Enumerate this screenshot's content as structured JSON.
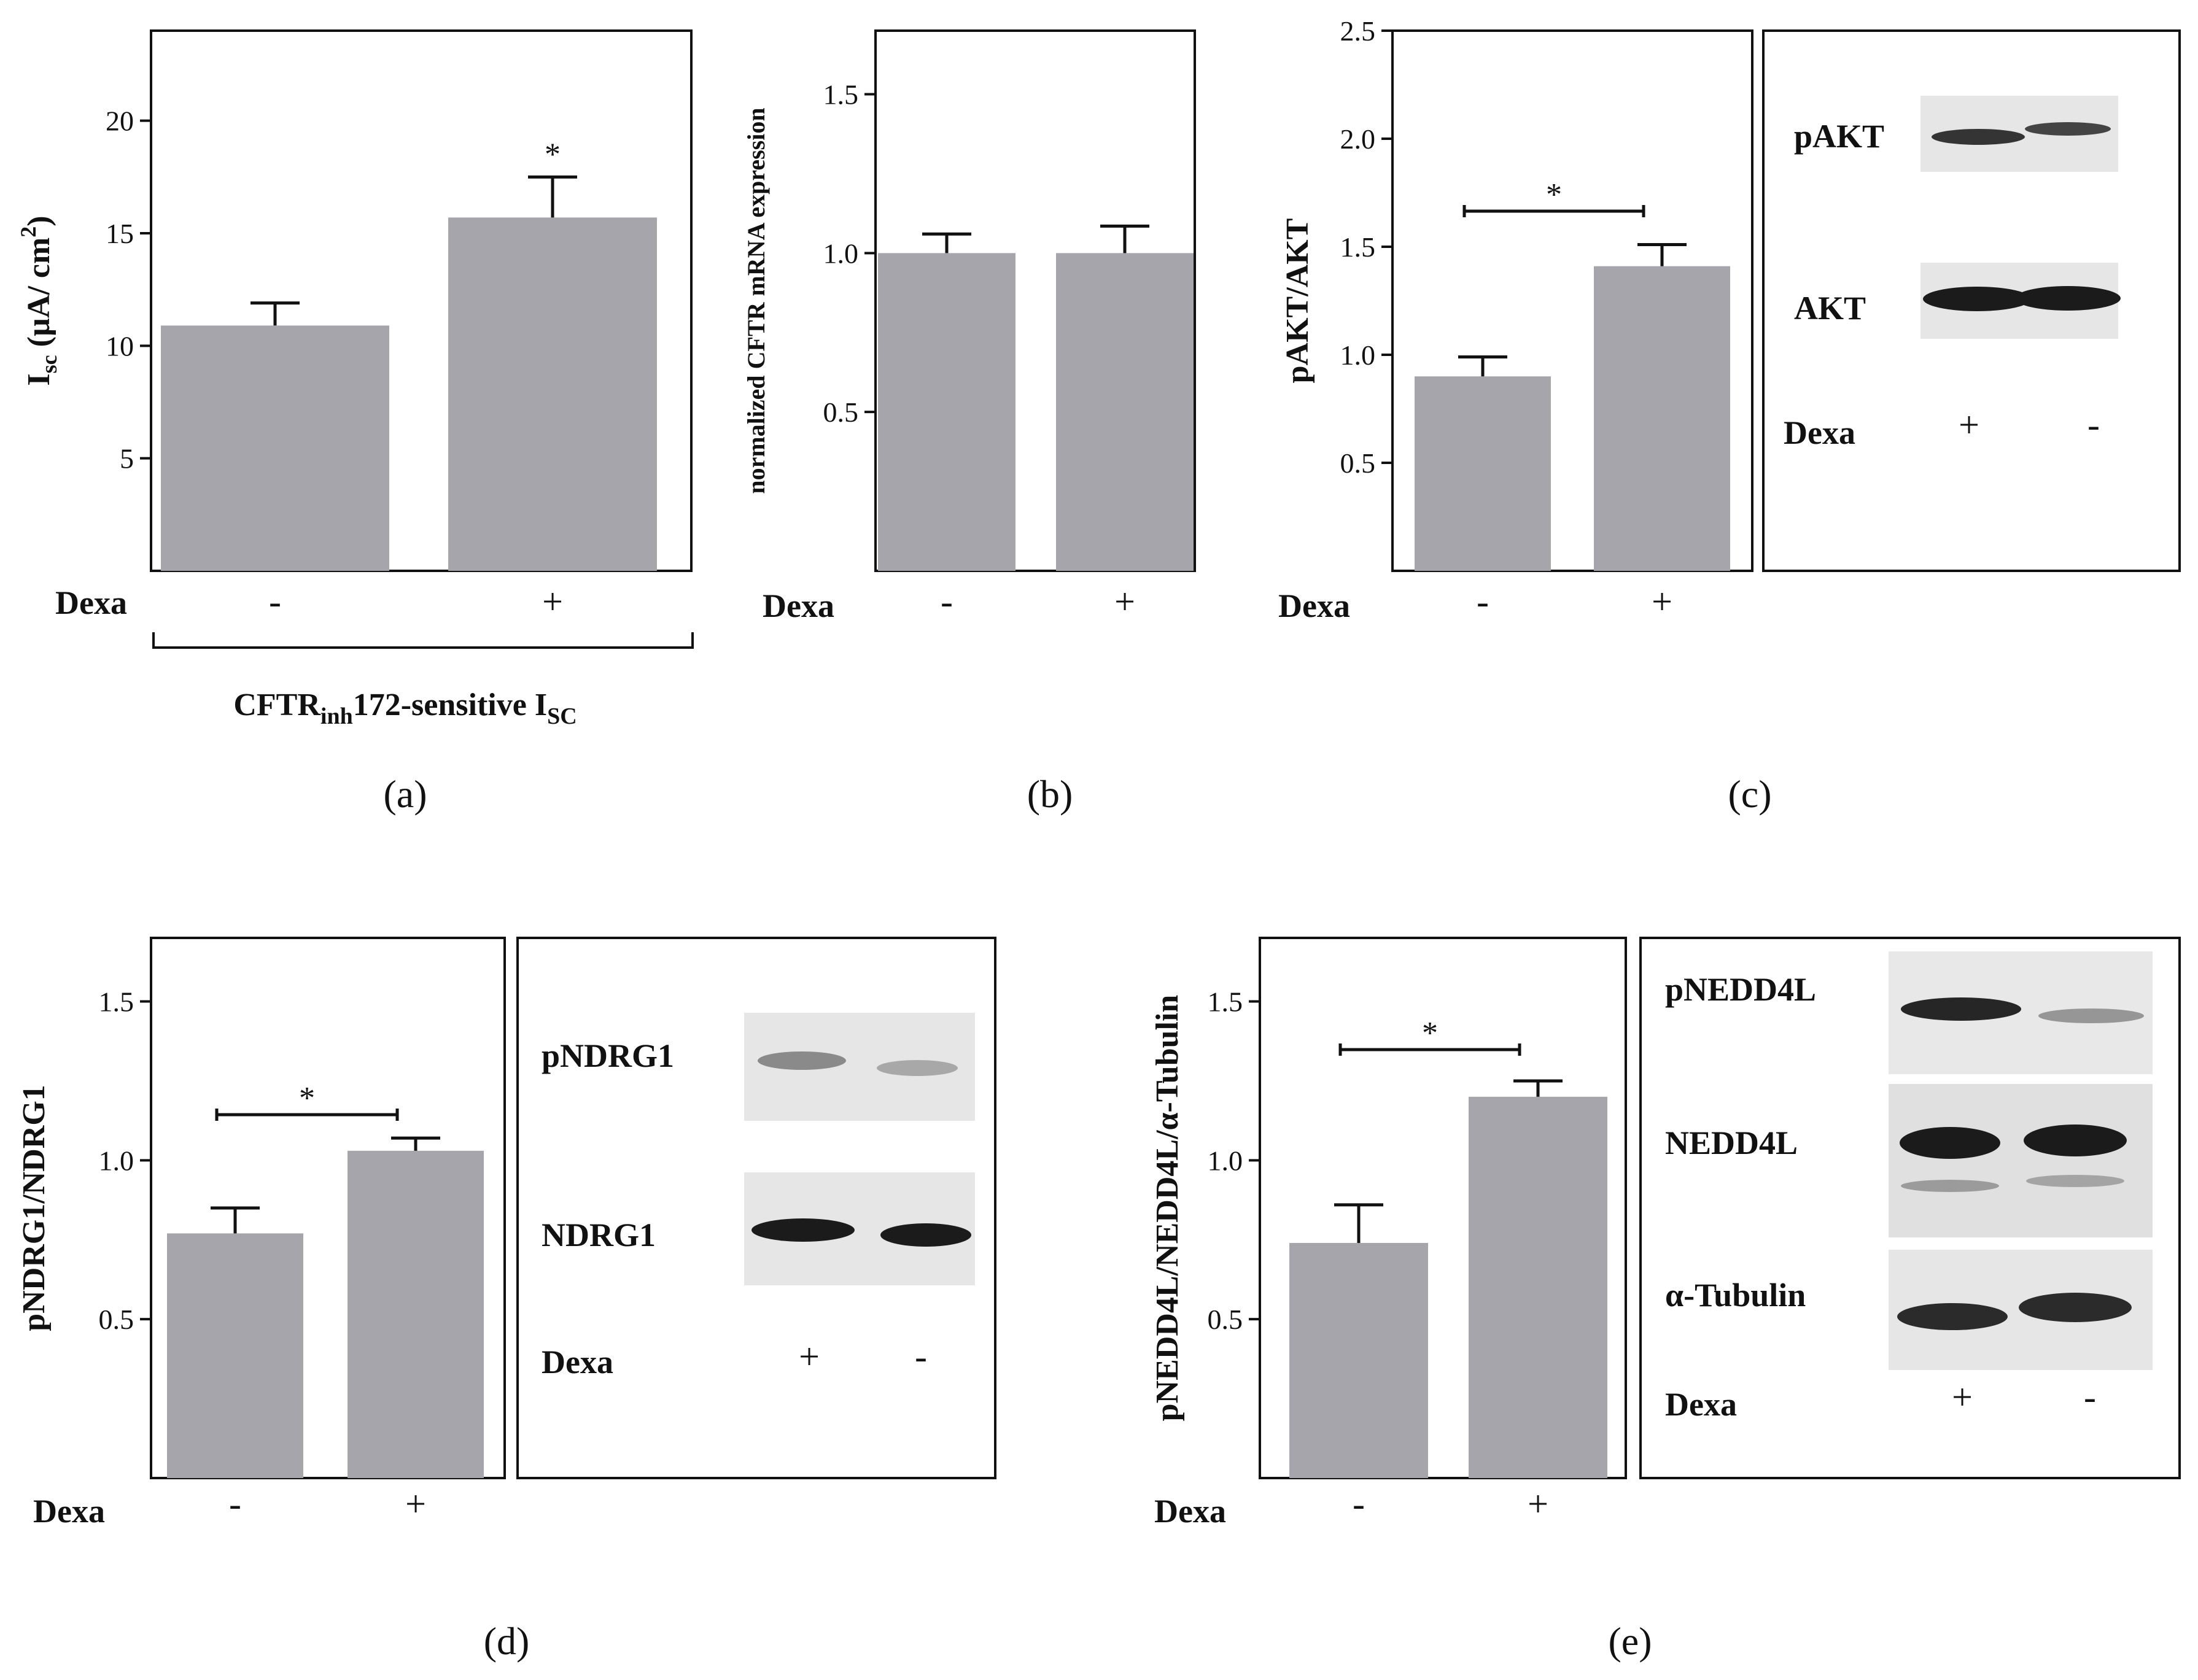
{
  "chart_data": [
    {
      "id": "a",
      "type": "bar",
      "caption": "(a)",
      "categories": [
        "-",
        "+"
      ],
      "values": [
        10.9,
        15.7
      ],
      "errors": [
        1.0,
        1.8
      ],
      "ylabel": "Isc (µA/ cm2)",
      "ylabel_parts": {
        "main": "I",
        "sub": "sc",
        "rest": " (µA/ cm",
        "sup": "2",
        "end": ")"
      },
      "ylim": [
        0,
        24
      ],
      "yticks": [
        5,
        10,
        15,
        20
      ],
      "ytick_labels": [
        "5",
        "10",
        "15",
        "20"
      ],
      "group_label": "Dexa",
      "significance": [
        {
          "text": "*",
          "kind": "single",
          "bar": 1
        }
      ],
      "bracket_label": {
        "pre": "CFTR",
        "sub1": "inh",
        "mid": "172-sensitive I",
        "sub2": "SC"
      }
    },
    {
      "id": "b",
      "type": "bar",
      "caption": "(b)",
      "categories": [
        "-",
        "+"
      ],
      "values": [
        1.0,
        1.0
      ],
      "errors": [
        0.06,
        0.085
      ],
      "ylabel": "normalized CFTR mRNA expression",
      "ylim": [
        0,
        1.7
      ],
      "yticks": [
        0.5,
        1.0,
        1.5
      ],
      "ytick_labels": [
        "0.5",
        "1.0",
        "1.5"
      ],
      "group_label": "Dexa",
      "significance": []
    },
    {
      "id": "c",
      "type": "bar",
      "caption": "(c)",
      "categories": [
        "-",
        "+"
      ],
      "values": [
        0.9,
        1.41
      ],
      "errors": [
        0.09,
        0.1
      ],
      "ylabel": "pAKT/AKT",
      "ylim": [
        0,
        2.5
      ],
      "yticks": [
        0.5,
        1.0,
        1.5,
        2.0,
        2.5
      ],
      "ytick_labels": [
        "0.5",
        "1.0",
        "1.5",
        "2.0",
        "2.5"
      ],
      "group_label": "Dexa",
      "significance": [
        {
          "text": "*",
          "kind": "bracket"
        }
      ]
    },
    {
      "id": "d",
      "type": "bar",
      "caption": "(d)",
      "categories": [
        "-",
        "+"
      ],
      "values": [
        0.77,
        1.03
      ],
      "errors": [
        0.08,
        0.04
      ],
      "ylabel": "pNDRG1/NDRG1",
      "ylim": [
        0,
        1.7
      ],
      "yticks": [
        0.5,
        1.0,
        1.5
      ],
      "ytick_labels": [
        "0.5",
        "1.0",
        "1.5"
      ],
      "group_label": "Dexa",
      "significance": [
        {
          "text": "*",
          "kind": "bracket"
        }
      ]
    },
    {
      "id": "e",
      "type": "bar",
      "caption": "(e)",
      "categories": [
        "-",
        "+"
      ],
      "values": [
        0.74,
        1.2
      ],
      "errors": [
        0.12,
        0.05
      ],
      "ylabel": "pNEDD4L/NEDD4L/α-Tubulin",
      "ylim": [
        0,
        1.7
      ],
      "yticks": [
        0.5,
        1.0,
        1.5
      ],
      "ytick_labels": [
        "0.5",
        "1.0",
        "1.5"
      ],
      "group_label": "Dexa",
      "significance": [
        {
          "text": "*",
          "kind": "bracket"
        }
      ]
    }
  ],
  "blots": [
    {
      "id": "c",
      "rows": [
        "pAKT",
        "AKT"
      ],
      "dexa_label": "Dexa",
      "lanes": [
        "+",
        "-"
      ]
    },
    {
      "id": "d",
      "rows": [
        "pNDRG1",
        "NDRG1"
      ],
      "dexa_label": "Dexa",
      "lanes": [
        "+",
        "-"
      ]
    },
    {
      "id": "e",
      "rows": [
        "pNEDD4L",
        "NEDD4L",
        "α-Tubulin"
      ],
      "dexa_label": "Dexa",
      "lanes": [
        "+",
        "-"
      ]
    }
  ],
  "colors": {
    "bar": "#a6a5ab",
    "frame": "#111111",
    "band": "#1b1b1b"
  }
}
